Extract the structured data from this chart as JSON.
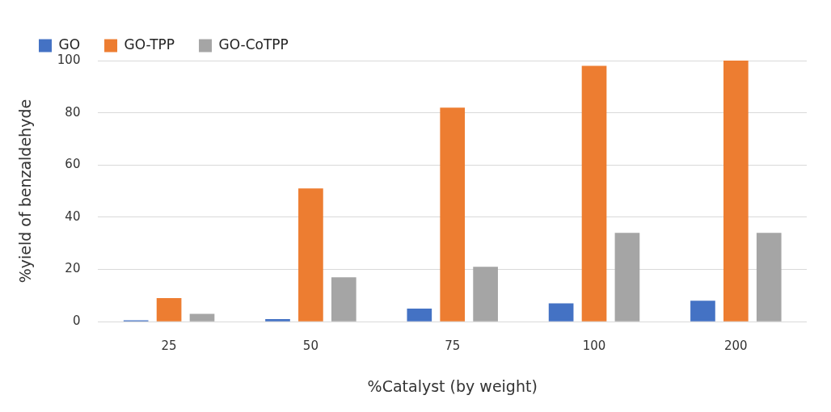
{
  "chart_data": {
    "type": "bar",
    "xlabel": "%Catalyst (by weight)",
    "ylabel": "%yield of benzaldehyde",
    "categories": [
      "25",
      "50",
      "75",
      "100",
      "200"
    ],
    "series": [
      {
        "name": "GO",
        "color": "#4472c4",
        "values": [
          0.5,
          1,
          5,
          7,
          8
        ]
      },
      {
        "name": "GO-TPP",
        "color": "#ed7d31",
        "values": [
          9,
          51,
          82,
          98,
          100
        ]
      },
      {
        "name": "GO-CoTPP",
        "color": "#a5a5a5",
        "values": [
          3,
          17,
          21,
          34,
          34
        ]
      }
    ],
    "ylim": [
      0,
      100
    ],
    "yticks": [
      0,
      20,
      40,
      60,
      80,
      100
    ],
    "grid": "y",
    "legend": "top left"
  }
}
